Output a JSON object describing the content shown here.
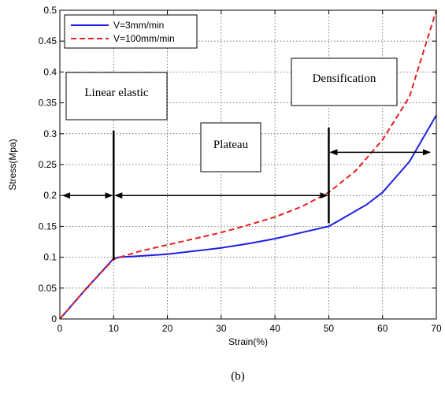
{
  "chart_data": {
    "type": "line",
    "xlabel": "Strain(%)",
    "ylabel": "Stress(Mpa)",
    "xlim": [
      0,
      70
    ],
    "ylim": [
      0,
      0.5
    ],
    "x_ticks": [
      "0",
      "10",
      "20",
      "30",
      "40",
      "50",
      "60",
      "70"
    ],
    "y_ticks": [
      "0",
      "0.05",
      "0.1",
      "0.15",
      "0.2",
      "0.25",
      "0.3",
      "0.35",
      "0.4",
      "0.45",
      "0.5"
    ],
    "grid": true,
    "legend_position": "top-left",
    "series": [
      {
        "name": "V=3mm/min",
        "color": "#1f1fe6",
        "line_style": "solid",
        "x": [
          0,
          5,
          10,
          11,
          15,
          20,
          25,
          30,
          35,
          40,
          45,
          50,
          52,
          55,
          57,
          60,
          62,
          65,
          67,
          70
        ],
        "y": [
          0,
          0.05,
          0.098,
          0.1,
          0.102,
          0.105,
          0.11,
          0.115,
          0.122,
          0.13,
          0.14,
          0.15,
          0.16,
          0.175,
          0.185,
          0.205,
          0.225,
          0.255,
          0.285,
          0.33
        ]
      },
      {
        "name": "V=100mm/min",
        "color": "#e61f1f",
        "line_style": "dashed",
        "x": [
          0,
          5,
          10,
          15,
          20,
          25,
          30,
          35,
          40,
          45,
          50,
          55,
          60,
          65,
          70
        ],
        "y": [
          0,
          0.05,
          0.097,
          0.11,
          0.12,
          0.13,
          0.14,
          0.152,
          0.165,
          0.182,
          0.205,
          0.24,
          0.29,
          0.36,
          0.5
        ]
      }
    ],
    "annotations": {
      "linear_elastic": "Linear elastic",
      "plateau": "Plateau",
      "densification": "Densification"
    },
    "markers": {
      "vertical_lines": [
        {
          "x": 10,
          "y_from": 0.095,
          "y_to": 0.305
        },
        {
          "x": 50,
          "y_from": 0.155,
          "y_to": 0.31
        }
      ],
      "arrows": [
        {
          "x_from": 0,
          "x_to": 10,
          "y": 0.2
        },
        {
          "x_from": 10,
          "x_to": 50,
          "y": 0.2
        },
        {
          "x_from": 50,
          "x_to": 70,
          "y": 0.27
        }
      ]
    }
  },
  "caption": "(b)"
}
